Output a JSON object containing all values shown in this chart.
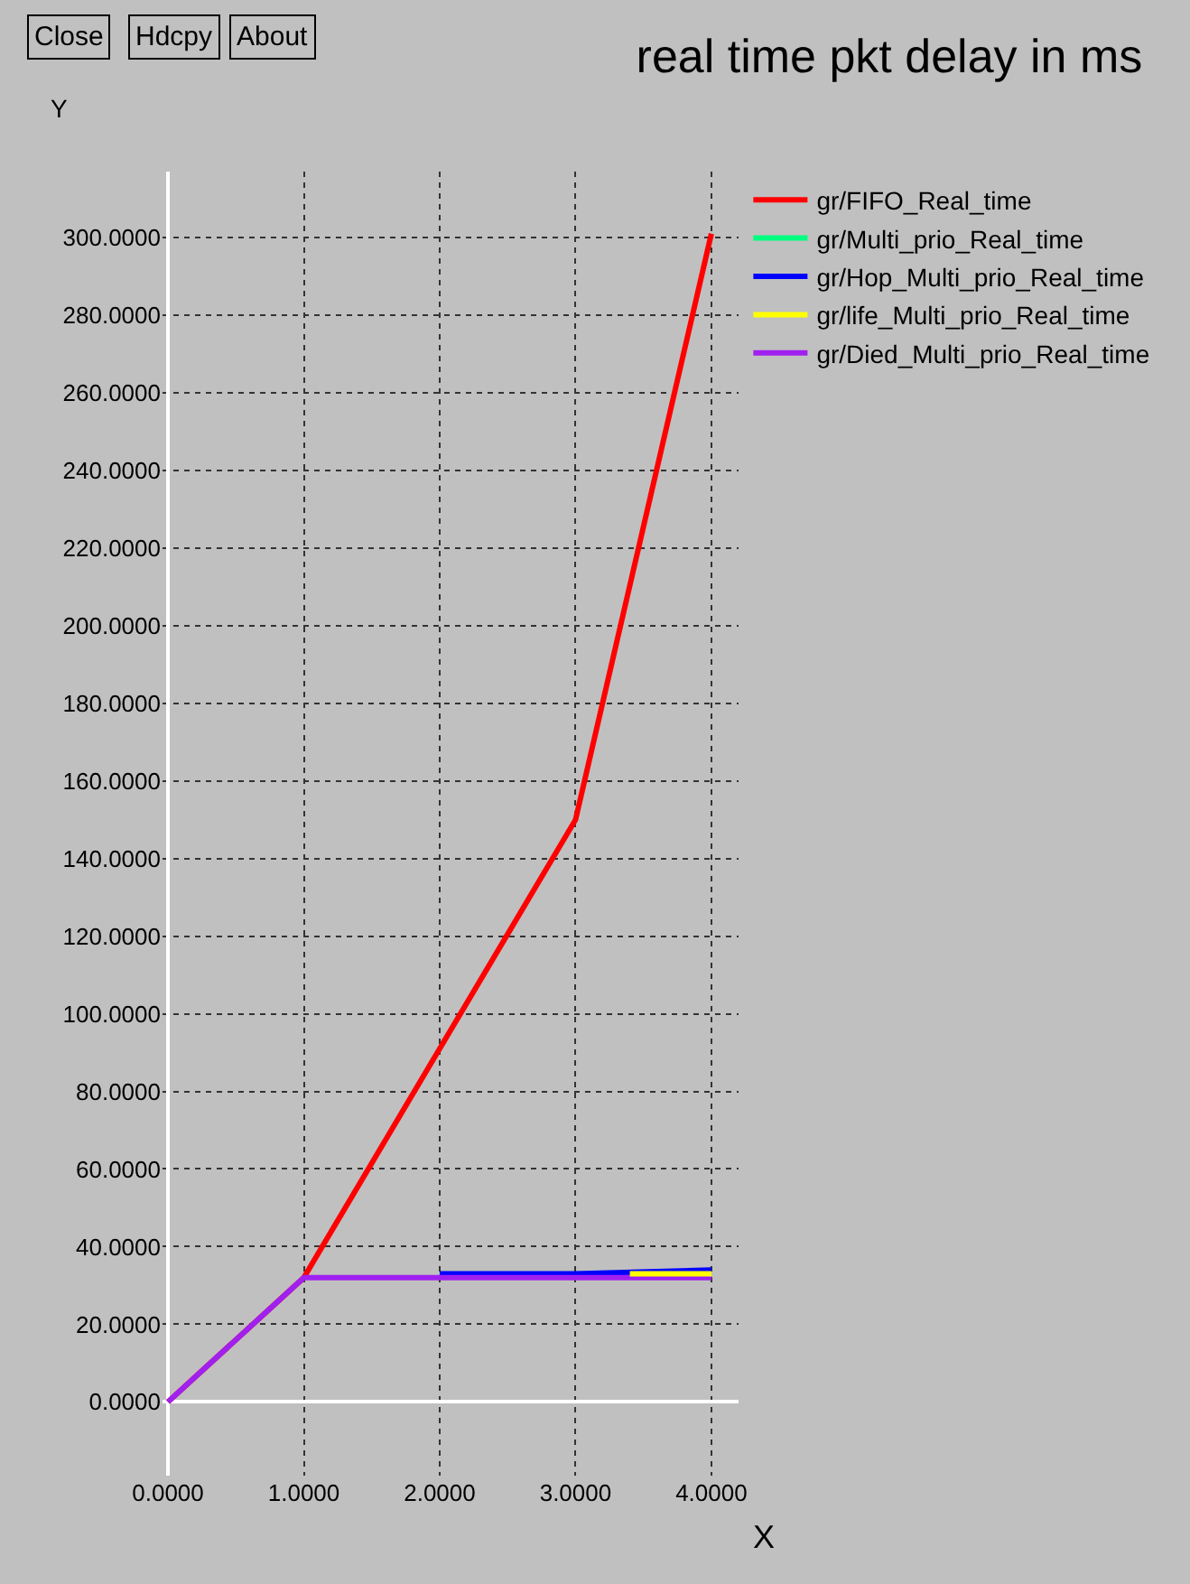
{
  "chart_data": {
    "type": "line",
    "title": "real time pkt delay in ms",
    "xlabel": "X",
    "ylabel": "Y",
    "annotations": [
      "Close",
      "Hdcpy",
      "About"
    ],
    "x": [
      0,
      1,
      2,
      3,
      4
    ],
    "series": [
      {
        "name": "gr/FIFO_Real_time",
        "color": "#ff0000",
        "values": [
          0,
          32,
          91,
          150,
          301
        ]
      },
      {
        "name": "gr/Multi_prio_Real_time",
        "color": "#00ff80",
        "values": [
          null,
          null,
          null,
          null,
          null
        ]
      },
      {
        "name": "gr/Hop_Multi_prio_Real_time",
        "color": "#0000ff",
        "values": [
          null,
          null,
          33,
          33,
          34
        ]
      },
      {
        "name": "gr/life_Multi_prio_Real_time",
        "color": "#ffff00",
        "x": [
          3.4,
          4
        ],
        "values": [
          33,
          33
        ]
      },
      {
        "name": "gr/Died_Multi_prio_Real_time",
        "color": "#a020f0",
        "values": [
          0,
          32,
          32,
          32,
          32
        ]
      }
    ],
    "xlim": [
      -0.04,
      4.2
    ],
    "ylim": [
      -19,
      317
    ],
    "xticks": [
      {
        "value": 0,
        "label": "0.0000"
      },
      {
        "value": 1,
        "label": "1.0000"
      },
      {
        "value": 2,
        "label": "2.0000"
      },
      {
        "value": 3,
        "label": "3.0000"
      },
      {
        "value": 4,
        "label": "4.0000"
      }
    ],
    "yticks": [
      {
        "value": 0,
        "label": "0.0000"
      },
      {
        "value": 20,
        "label": "20.0000"
      },
      {
        "value": 40,
        "label": "40.0000"
      },
      {
        "value": 60,
        "label": "60.0000"
      },
      {
        "value": 80,
        "label": "80.0000"
      },
      {
        "value": 100,
        "label": "100.0000"
      },
      {
        "value": 120,
        "label": "120.0000"
      },
      {
        "value": 140,
        "label": "140.0000"
      },
      {
        "value": 160,
        "label": "160.0000"
      },
      {
        "value": 180,
        "label": "180.0000"
      },
      {
        "value": 200,
        "label": "200.0000"
      },
      {
        "value": 220,
        "label": "220.0000"
      },
      {
        "value": 240,
        "label": "240.0000"
      },
      {
        "value": 260,
        "label": "260.0000"
      },
      {
        "value": 280,
        "label": "280.0000"
      },
      {
        "value": 300,
        "label": "300.0000"
      }
    ],
    "grid": true,
    "legend": "top right",
    "marker": "none",
    "line_style": "solid"
  }
}
